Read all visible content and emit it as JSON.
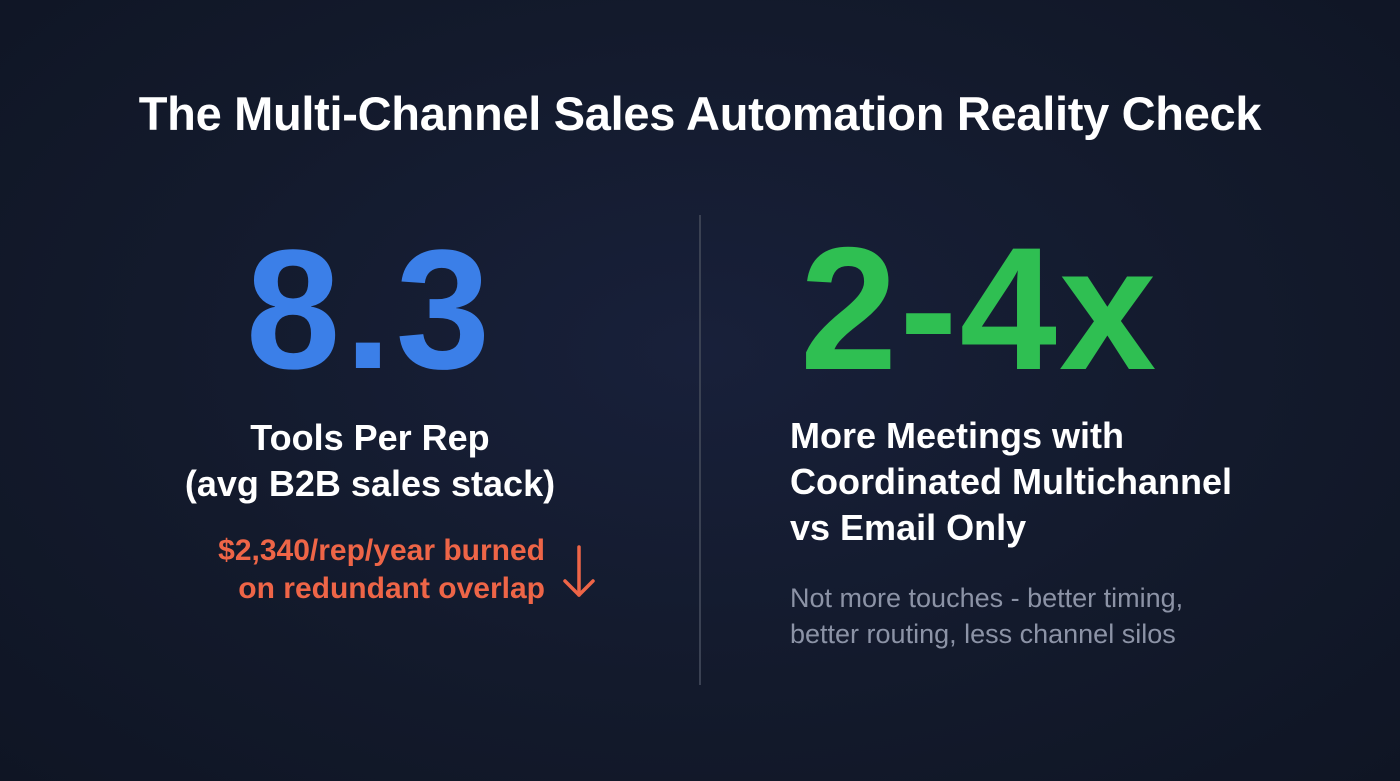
{
  "title": "The Multi-Channel Sales Automation Reality Check",
  "left": {
    "stat": "8.3",
    "label_line1": "Tools Per Rep",
    "label_line2": "(avg B2B sales stack)",
    "cost_line1": "$2,340/rep/year burned",
    "cost_line2": "on redundant overlap",
    "arrow_icon": "arrow-down-icon",
    "stat_color": "#3b7fe8",
    "cost_color": "#ee6547"
  },
  "right": {
    "stat": "2-4x",
    "label_line1": "More Meetings with",
    "label_line2": "Coordinated Multichannel",
    "label_line3": "vs Email Only",
    "note_line1": "Not more touches - better timing,",
    "note_line2": "better routing, less channel silos",
    "stat_color": "#2fbf52"
  }
}
